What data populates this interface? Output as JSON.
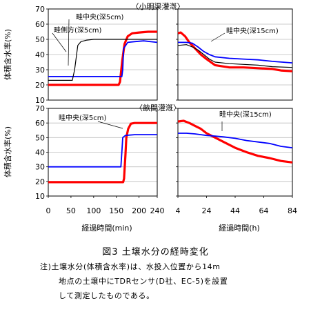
{
  "chart_data": [
    {
      "type": "line",
      "group": "小明渠灌漑",
      "ylabel": "体積含水率(%)",
      "xlim": [
        0,
        240
      ],
      "ylim": [
        10,
        70
      ],
      "yticks": [
        10,
        20,
        30,
        40,
        50,
        60,
        70
      ],
      "xticks": [],
      "grid": true,
      "series": [
        {
          "name": "畦中央(深5cm)",
          "color": "#ff0000",
          "x": [
            0,
            155,
            158,
            163,
            168,
            175,
            185,
            200,
            220,
            240
          ],
          "y": [
            20,
            20,
            22,
            36,
            47,
            52,
            54,
            54.5,
            55,
            55
          ]
        },
        {
          "name": "",
          "color": "#0000ff",
          "x": [
            0,
            162,
            164,
            166,
            175,
            190,
            210,
            240
          ],
          "y": [
            25.5,
            25.5,
            30,
            44,
            48,
            48.5,
            49,
            48
          ]
        },
        {
          "name": "畦側方(深5cm)",
          "color": "#000000",
          "x": [
            0,
            53,
            58,
            62,
            65,
            72,
            85,
            100,
            240
          ],
          "y": [
            23,
            23,
            30,
            39,
            46,
            48.5,
            49.5,
            50,
            50
          ]
        }
      ]
    },
    {
      "type": "line",
      "group": "",
      "xlim": [
        4,
        84
      ],
      "ylim": [
        10,
        70
      ],
      "yticks": [
        10,
        20,
        30,
        40,
        50,
        60,
        70
      ],
      "xticks": [],
      "grid": true,
      "series": [
        {
          "name": "",
          "color": "#ff0000",
          "x": [
            4,
            6,
            9,
            12,
            16,
            20,
            24,
            30,
            40,
            50,
            60,
            70,
            76,
            84
          ],
          "y": [
            54,
            54.5,
            52,
            48,
            44,
            40,
            37,
            33,
            31.5,
            31.5,
            31,
            30.5,
            29.5,
            29
          ]
        },
        {
          "name": "畦中央(深15cm)",
          "color": "#0000ff",
          "x": [
            4,
            10,
            14,
            18,
            22,
            26,
            30,
            40,
            50,
            60,
            70,
            84
          ],
          "y": [
            48,
            48,
            47.5,
            45,
            42,
            40,
            38.5,
            37.5,
            37,
            36.5,
            35.5,
            34.5
          ]
        },
        {
          "name": "",
          "color": "#000000",
          "x": [
            4,
            10,
            14,
            18,
            22,
            26,
            30,
            40,
            50,
            60,
            70,
            84
          ],
          "y": [
            46,
            46.5,
            45,
            43,
            40,
            37,
            35,
            34,
            33.5,
            33,
            32,
            31.5
          ]
        }
      ]
    },
    {
      "type": "line",
      "group": "畝間灌漑",
      "ylabel": "体積含水率(%)",
      "xlabel": "経過時間(min)",
      "xlim": [
        0,
        240
      ],
      "ylim": [
        10,
        70
      ],
      "yticks": [
        10,
        20,
        30,
        40,
        50,
        60,
        70
      ],
      "xticks": [
        0,
        50,
        100,
        150,
        200,
        240
      ],
      "xtick_labels": [
        "0",
        "50",
        "100",
        "150",
        "200",
        "240"
      ],
      "grid": true,
      "series": [
        {
          "name": "畦中央(深5cm)",
          "color": "#ff0000",
          "x": [
            0,
            165,
            167,
            170,
            172,
            176,
            182,
            190,
            240
          ],
          "y": [
            19.5,
            19.5,
            22,
            38,
            50,
            56,
            59.5,
            60,
            60
          ]
        },
        {
          "name": "",
          "color": "#0000ff",
          "x": [
            0,
            160,
            162,
            164,
            170,
            190,
            210,
            240
          ],
          "y": [
            30,
            30,
            40,
            50,
            51.5,
            52,
            52,
            52
          ]
        }
      ]
    },
    {
      "type": "line",
      "group": "",
      "xlabel": "経過時間(h)",
      "xlim": [
        4,
        84
      ],
      "ylim": [
        10,
        70
      ],
      "yticks": [
        10,
        20,
        30,
        40,
        50,
        60,
        70
      ],
      "xticks": [
        4,
        24,
        44,
        64,
        84
      ],
      "xtick_labels": [
        "4",
        "24",
        "44",
        "64",
        "84"
      ],
      "grid": true,
      "series": [
        {
          "name": "",
          "color": "#ff0000",
          "x": [
            4,
            8,
            12,
            16,
            20,
            24,
            30,
            36,
            44,
            52,
            60,
            68,
            76,
            84
          ],
          "y": [
            61,
            61.5,
            60,
            58,
            56,
            53,
            50,
            47,
            43,
            40,
            37.5,
            36,
            34,
            33
          ]
        },
        {
          "name": "畦中央(深15cm)",
          "color": "#0000ff",
          "x": [
            4,
            10,
            16,
            20,
            24,
            30,
            36,
            44,
            52,
            60,
            68,
            76,
            84
          ],
          "y": [
            53,
            53,
            52.5,
            52,
            51.5,
            51,
            50.5,
            49.5,
            48,
            47,
            46,
            44,
            43
          ]
        }
      ]
    }
  ],
  "brackets": [
    "〈小明渠灌漑〉",
    "〈畝間灌漑〉"
  ],
  "caption": {
    "title": "図3 土壌水分の経時変化",
    "note1": "注)土壌水分(体積含水率)は、水投入位置から14m",
    "note2": "地点の土壌中にTDRセンサ(D社、EC-5)を設置",
    "note3": "して測定したものである。"
  }
}
